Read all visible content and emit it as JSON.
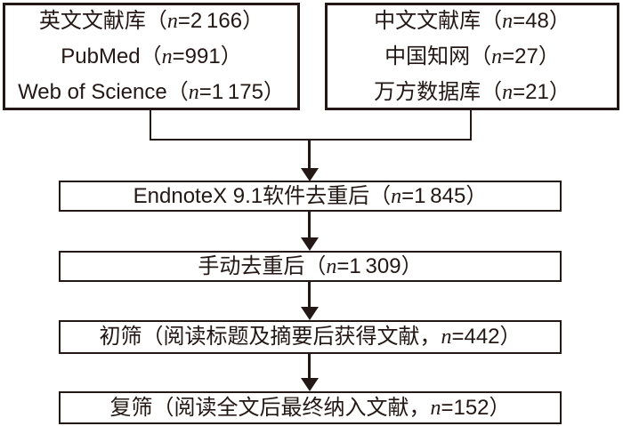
{
  "figure": {
    "background": "#ffffff",
    "line_color": "#231815",
    "type": "literature-screening-flowchart"
  },
  "flow": {
    "english_db": {
      "lines": [
        {
          "pre": "英文文献库（",
          "n": "n",
          "post": "=2 166）"
        },
        {
          "pre": "PubMed（",
          "n": "n",
          "post": "=991）"
        },
        {
          "pre": "Web of Science（",
          "n": "n",
          "post": "=1 175）"
        }
      ]
    },
    "chinese_db": {
      "lines": [
        {
          "pre": "中文文献库（",
          "n": "n",
          "post": "=48）"
        },
        {
          "pre": "中国知网（",
          "n": "n",
          "post": "=27）"
        },
        {
          "pre": "万方数据库（",
          "n": "n",
          "post": "=21）"
        }
      ]
    },
    "dedup_software": {
      "pre": "EndnoteX 9.1软件去重后（",
      "n": "n",
      "post": "=1 845）"
    },
    "dedup_manual": {
      "pre": "手动去重后（",
      "n": "n",
      "post": "=1 309）"
    },
    "primary_screening": {
      "pre": "初筛（阅读标题及摘要后获得文献，",
      "n": "n",
      "post": "=442）"
    },
    "secondary_screening": {
      "pre": "复筛（阅读全文后最终纳入文献，",
      "n": "n",
      "post": "=152）"
    }
  }
}
